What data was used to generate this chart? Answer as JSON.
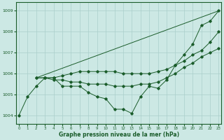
{
  "xlabel": "Graphe pression niveau de la mer (hPa)",
  "ylabel": "",
  "bg_color": "#cce8e4",
  "grid_color": "#aacfcb",
  "line_color": "#1a5c2a",
  "ylim": [
    1003.6,
    1009.4
  ],
  "xlim": [
    -0.3,
    23.3
  ],
  "yticks": [
    1004,
    1005,
    1006,
    1007,
    1008,
    1009
  ],
  "xticks": [
    0,
    1,
    2,
    3,
    4,
    5,
    6,
    7,
    8,
    9,
    10,
    11,
    12,
    13,
    14,
    15,
    16,
    17,
    18,
    19,
    20,
    21,
    22,
    23
  ],
  "lines": [
    {
      "x": [
        0,
        1,
        2,
        3,
        4,
        5,
        6,
        7,
        8,
        9,
        10,
        11,
        12,
        13,
        14,
        15,
        16,
        17,
        18,
        19,
        20,
        21,
        22,
        23
      ],
      "y": [
        1004.0,
        1004.9,
        1005.4,
        1005.8,
        1005.8,
        1005.4,
        1005.4,
        1005.4,
        1005.1,
        1004.9,
        1004.8,
        1004.3,
        1004.3,
        1004.1,
        1004.9,
        1005.4,
        1005.3,
        1005.7,
        1006.4,
        1006.9,
        1007.4,
        1008.3,
        1008.5,
        1009.0
      ],
      "has_markers": true
    },
    {
      "x": [
        2,
        23
      ],
      "y": [
        1005.8,
        1009.0
      ],
      "has_markers": false
    },
    {
      "x": [
        2,
        3,
        4,
        5,
        6,
        7,
        8,
        9,
        10,
        11,
        12,
        13,
        14,
        15,
        16,
        17,
        18,
        19,
        20,
        21,
        22,
        23
      ],
      "y": [
        1005.8,
        1005.8,
        1005.8,
        1005.9,
        1006.0,
        1006.1,
        1006.1,
        1006.1,
        1006.1,
        1006.1,
        1006.0,
        1006.0,
        1006.0,
        1006.0,
        1006.1,
        1006.2,
        1006.4,
        1006.6,
        1006.9,
        1007.1,
        1007.5,
        1008.0
      ],
      "has_markers": true
    },
    {
      "x": [
        2,
        3,
        4,
        5,
        6,
        7,
        8,
        9,
        10,
        11,
        12,
        13,
        14,
        15,
        16,
        17,
        18,
        19,
        20,
        21,
        22,
        23
      ],
      "y": [
        1005.8,
        1005.8,
        1005.7,
        1005.7,
        1005.6,
        1005.6,
        1005.5,
        1005.5,
        1005.5,
        1005.4,
        1005.4,
        1005.4,
        1005.5,
        1005.5,
        1005.6,
        1005.8,
        1006.0,
        1006.3,
        1006.5,
        1006.8,
        1007.0,
        1007.2
      ],
      "has_markers": true
    }
  ]
}
